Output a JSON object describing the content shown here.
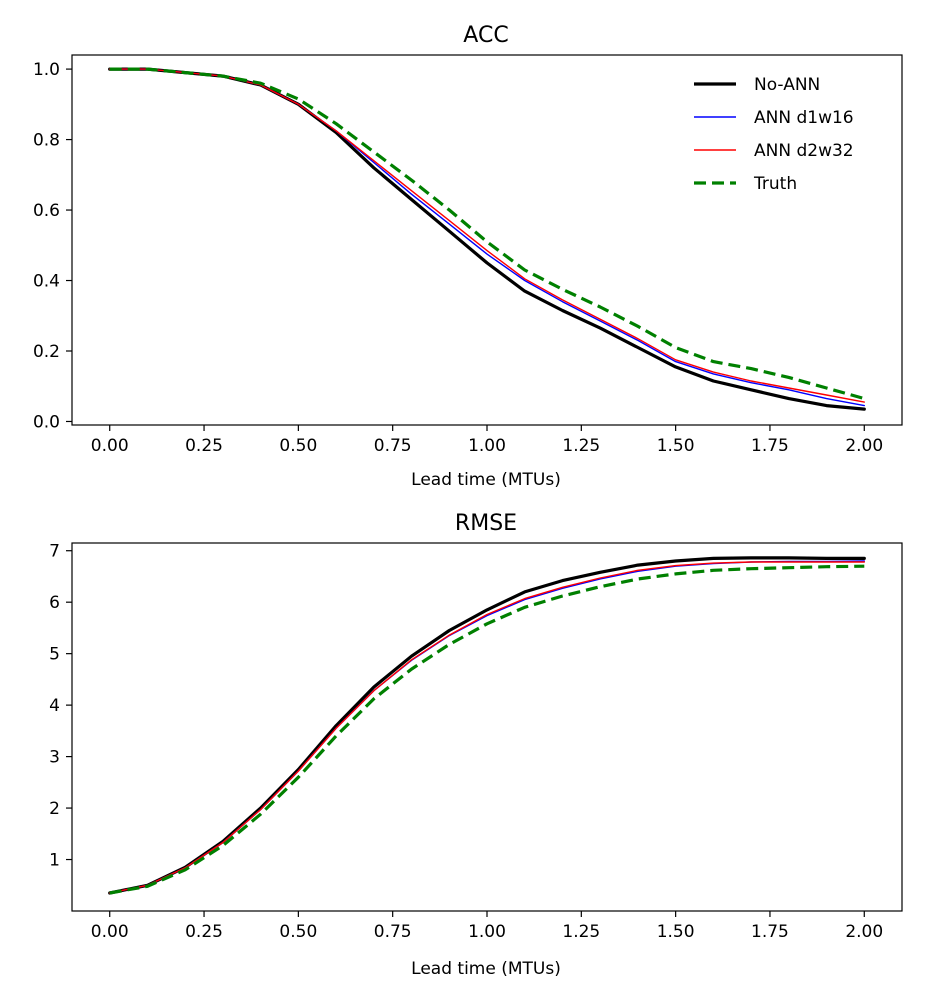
{
  "chart_data": [
    {
      "type": "line",
      "title": "ACC",
      "xlabel": "Lead time (MTUs)",
      "ylabel": "",
      "xlim": [
        -0.1,
        2.1
      ],
      "ylim": [
        -0.01,
        1.04
      ],
      "xticks": [
        0,
        0.25,
        0.5,
        0.75,
        1.0,
        1.25,
        1.5,
        1.75,
        2.0
      ],
      "xtick_labels": [
        "0.00",
        "0.25",
        "0.50",
        "0.75",
        "1.00",
        "1.25",
        "1.50",
        "1.75",
        "2.00"
      ],
      "yticks": [
        0,
        0.2,
        0.4,
        0.6,
        0.8,
        1.0
      ],
      "ytick_labels": [
        "0.0",
        "0.2",
        "0.4",
        "0.6",
        "0.8",
        "1.0"
      ],
      "legend_position": "top-right",
      "x": [
        0,
        0.1,
        0.2,
        0.3,
        0.4,
        0.5,
        0.6,
        0.7,
        0.8,
        0.9,
        1.0,
        1.1,
        1.2,
        1.3,
        1.4,
        1.5,
        1.6,
        1.7,
        1.8,
        1.9,
        2.0
      ],
      "series": [
        {
          "name": "No-ANN",
          "color": "#000000",
          "style": "solid-thick",
          "values": [
            1.0,
            1.0,
            0.99,
            0.98,
            0.955,
            0.9,
            0.82,
            0.72,
            0.63,
            0.54,
            0.45,
            0.37,
            0.315,
            0.265,
            0.21,
            0.155,
            0.115,
            0.09,
            0.065,
            0.045,
            0.035
          ]
        },
        {
          "name": "ANN d1w16",
          "color": "#0000ff",
          "style": "solid",
          "values": [
            1.0,
            1.0,
            0.99,
            0.98,
            0.955,
            0.9,
            0.825,
            0.735,
            0.645,
            0.56,
            0.475,
            0.4,
            0.34,
            0.285,
            0.23,
            0.17,
            0.135,
            0.11,
            0.09,
            0.065,
            0.045
          ]
        },
        {
          "name": "ANN d2w32",
          "color": "#ff0000",
          "style": "solid",
          "values": [
            1.0,
            1.0,
            0.99,
            0.98,
            0.955,
            0.9,
            0.825,
            0.74,
            0.655,
            0.57,
            0.485,
            0.405,
            0.345,
            0.29,
            0.235,
            0.175,
            0.14,
            0.115,
            0.095,
            0.075,
            0.055
          ]
        },
        {
          "name": "Truth",
          "color": "#008000",
          "style": "dashed",
          "values": [
            1.0,
            1.0,
            0.99,
            0.98,
            0.96,
            0.915,
            0.845,
            0.765,
            0.685,
            0.6,
            0.51,
            0.43,
            0.375,
            0.325,
            0.27,
            0.21,
            0.17,
            0.15,
            0.125,
            0.095,
            0.065
          ]
        }
      ]
    },
    {
      "type": "line",
      "title": "RMSE",
      "xlabel": "Lead time (MTUs)",
      "ylabel": "",
      "xlim": [
        -0.1,
        2.1
      ],
      "ylim": [
        0.0,
        7.15
      ],
      "xticks": [
        0,
        0.25,
        0.5,
        0.75,
        1.0,
        1.25,
        1.5,
        1.75,
        2.0
      ],
      "xtick_labels": [
        "0.00",
        "0.25",
        "0.50",
        "0.75",
        "1.00",
        "1.25",
        "1.50",
        "1.75",
        "2.00"
      ],
      "yticks": [
        1,
        2,
        3,
        4,
        5,
        6,
        7
      ],
      "ytick_labels": [
        "1",
        "2",
        "3",
        "4",
        "5",
        "6",
        "7"
      ],
      "x": [
        0,
        0.1,
        0.2,
        0.3,
        0.4,
        0.5,
        0.6,
        0.7,
        0.8,
        0.9,
        1.0,
        1.1,
        1.2,
        1.3,
        1.4,
        1.5,
        1.6,
        1.7,
        1.8,
        1.9,
        2.0
      ],
      "series": [
        {
          "name": "No-ANN",
          "color": "#000000",
          "style": "solid-thick",
          "values": [
            0.35,
            0.5,
            0.85,
            1.35,
            2.0,
            2.75,
            3.6,
            4.35,
            4.95,
            5.45,
            5.85,
            6.2,
            6.42,
            6.58,
            6.72,
            6.8,
            6.85,
            6.86,
            6.86,
            6.85,
            6.85
          ]
        },
        {
          "name": "ANN d1w16",
          "color": "#0000ff",
          "style": "solid",
          "values": [
            0.35,
            0.5,
            0.84,
            1.33,
            1.97,
            2.72,
            3.55,
            4.28,
            4.87,
            5.35,
            5.74,
            6.05,
            6.27,
            6.45,
            6.6,
            6.7,
            6.75,
            6.78,
            6.79,
            6.79,
            6.8
          ]
        },
        {
          "name": "ANN d2w32",
          "color": "#ff0000",
          "style": "solid",
          "values": [
            0.35,
            0.5,
            0.84,
            1.33,
            1.97,
            2.72,
            3.55,
            4.28,
            4.88,
            5.36,
            5.76,
            6.07,
            6.29,
            6.47,
            6.62,
            6.71,
            6.76,
            6.78,
            6.78,
            6.78,
            6.78
          ]
        },
        {
          "name": "Truth",
          "color": "#008000",
          "style": "dashed",
          "values": [
            0.35,
            0.48,
            0.8,
            1.27,
            1.88,
            2.6,
            3.4,
            4.12,
            4.7,
            5.18,
            5.58,
            5.9,
            6.12,
            6.3,
            6.45,
            6.55,
            6.62,
            6.65,
            6.67,
            6.69,
            6.7
          ]
        }
      ]
    }
  ]
}
